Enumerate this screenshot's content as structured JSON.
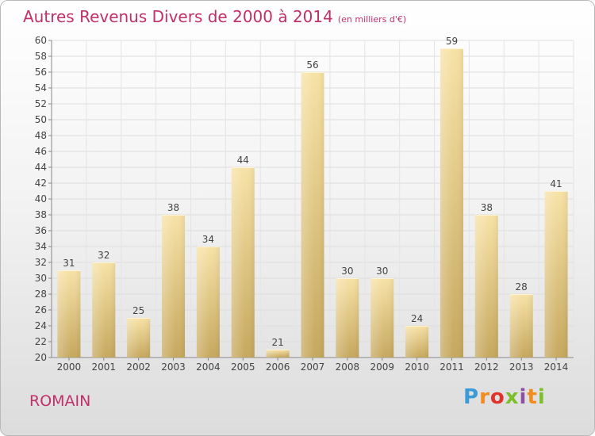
{
  "title": "Autres Revenus Divers de 2000 à 2014",
  "subtitle": "(en milliers d'€)",
  "commune": "ROMAIN",
  "logo": {
    "text": "Proxiti",
    "letters": [
      "P",
      "r",
      "o",
      "x",
      "i",
      "t",
      "i"
    ]
  },
  "colors": {
    "title": "#c0306a",
    "bar_light": "#f6dea0",
    "bar_dark": "#c9ac62",
    "grid": "#dddddd"
  },
  "chart_data": {
    "type": "bar",
    "title": "Autres Revenus Divers de 2000 à 2014",
    "subtitle": "(en milliers d'€)",
    "xlabel": "",
    "ylabel": "",
    "categories": [
      "2000",
      "2001",
      "2002",
      "2003",
      "2004",
      "2005",
      "2006",
      "2007",
      "2008",
      "2009",
      "2010",
      "2011",
      "2012",
      "2013",
      "2014"
    ],
    "values": [
      31,
      32,
      25,
      38,
      34,
      44,
      21,
      56,
      30,
      30,
      24,
      59,
      38,
      28,
      41
    ],
    "ylim": [
      20,
      60
    ],
    "ytick_step": 2,
    "grid": true,
    "data_labels": true
  }
}
